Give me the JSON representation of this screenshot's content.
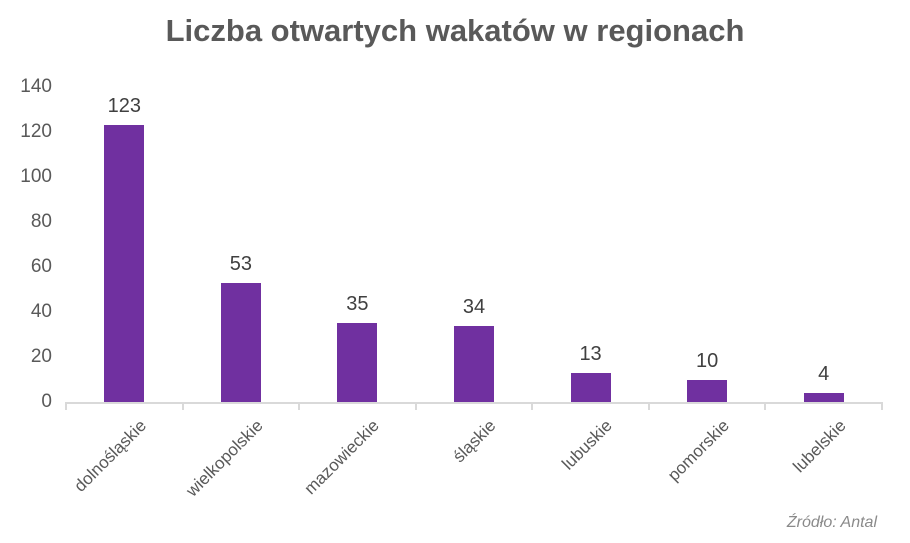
{
  "title": "Liczba otwartych wakatów w regionach",
  "source_note": "Źródło: Antal",
  "colors": {
    "background": "#FFFFFF",
    "bar": "#7030A0",
    "title_text": "#595959",
    "axis_tick_text": "#595959",
    "category_text": "#595959",
    "value_label_text": "#404040",
    "axis_line": "#D9D9D9",
    "source_text": "#8A8A8A"
  },
  "chart_data": {
    "type": "bar",
    "title": "Liczba otwartych wakatów w regionach",
    "categories": [
      "dolnośląskie",
      "wielkopolskie",
      "mazowieckie",
      "śląskie",
      "lubuskie",
      "pomorskie",
      "lubelskie"
    ],
    "values": [
      123,
      53,
      35,
      34,
      13,
      10,
      4
    ],
    "xlabel": "",
    "ylabel": "",
    "ylim": [
      0,
      140
    ],
    "yticks": [
      0,
      20,
      40,
      60,
      80,
      100,
      120,
      140
    ],
    "grid": false,
    "legend": "none",
    "data_labels": true,
    "x_label_rotation_deg": 45,
    "bar_color": "#7030A0",
    "source": "Źródło: Antal"
  }
}
